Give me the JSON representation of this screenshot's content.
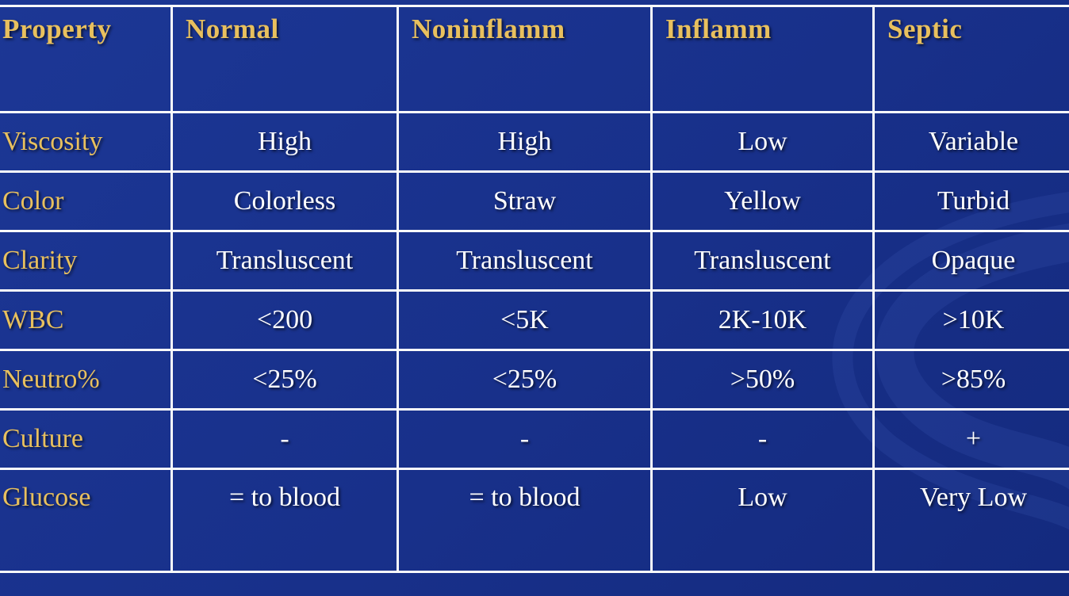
{
  "slide": {
    "background_color": "#18308a",
    "border_color": "#fafafa",
    "header_text_color": "#e8c05e",
    "row_label_color": "#e8c05e",
    "cell_text_color": "#ffffff",
    "swirl_color": "#4a69c9"
  },
  "chart_data": {
    "type": "table",
    "columns": [
      "Property",
      "Normal",
      "Noninflamm",
      "Inflamm",
      "Septic"
    ],
    "rows": [
      {
        "label": "Viscosity",
        "values": [
          "High",
          "High",
          "Low",
          "Variable"
        ]
      },
      {
        "label": "Color",
        "values": [
          "Colorless",
          "Straw",
          "Yellow",
          "Turbid"
        ]
      },
      {
        "label": "Clarity",
        "values": [
          "Transluscent",
          "Transluscent",
          "Transluscent",
          "Opaque"
        ]
      },
      {
        "label": "WBC",
        "values": [
          "<200",
          "<5K",
          "2K-10K",
          ">10K"
        ]
      },
      {
        "label": "Neutro%",
        "values": [
          "<25%",
          "<25%",
          ">50%",
          ">85%"
        ]
      },
      {
        "label": "Culture",
        "values": [
          "-",
          "-",
          "-",
          "+"
        ]
      },
      {
        "label": "Glucose",
        "values": [
          "= to blood",
          "= to blood",
          "Low",
          "Very Low"
        ]
      }
    ]
  }
}
